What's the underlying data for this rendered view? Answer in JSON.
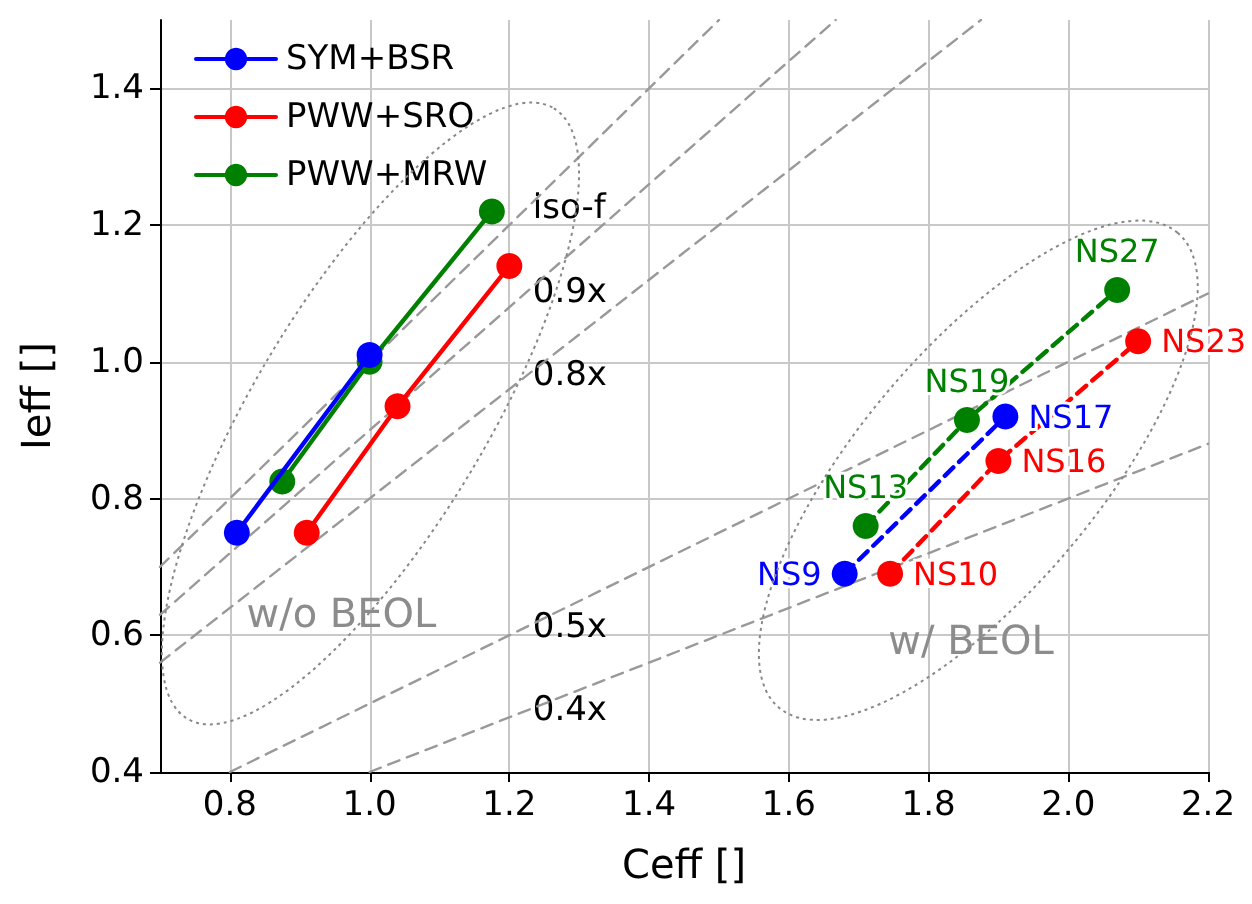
{
  "chart_data": {
    "type": "line",
    "xlabel": "Ceff []",
    "ylabel": "Ieff []",
    "xlim": [
      0.7,
      2.2
    ],
    "xticks": [
      0.8,
      {
        "value": 1.0,
        "label": "1.0"
      },
      1.2,
      1.4,
      1.6,
      1.8,
      {
        "value": 2.0,
        "label": "2.0"
      },
      2.2
    ],
    "ylim": [
      0.4,
      1.5
    ],
    "yticks": [
      0.4,
      0.6,
      0.8,
      {
        "value": 1.0,
        "label": "1.0"
      },
      1.2,
      1.4
    ],
    "grid": true,
    "legend": "top left",
    "marker": "circle",
    "series": [
      {
        "name": "iso-f",
        "color": "#999999",
        "line_style": "dashed",
        "marker": "none",
        "x": [
          0.7,
          1.5
        ],
        "values": [
          0.7,
          1.5
        ]
      },
      {
        "name": "0.9x",
        "color": "#999999",
        "line_style": "dashed",
        "marker": "none",
        "x": [
          0.7,
          1.667
        ],
        "values": [
          0.63,
          1.5
        ]
      },
      {
        "name": "0.8x",
        "color": "#999999",
        "line_style": "dashed",
        "marker": "none",
        "x": [
          0.7,
          1.875
        ],
        "values": [
          0.56,
          1.5
        ]
      },
      {
        "name": "0.5x",
        "color": "#999999",
        "line_style": "dashed",
        "marker": "none",
        "x": [
          0.8,
          2.2
        ],
        "values": [
          0.4,
          1.1
        ]
      },
      {
        "name": "0.4x",
        "color": "#999999",
        "line_style": "dashed",
        "marker": "none",
        "x": [
          1.0,
          2.2
        ],
        "values": [
          0.4,
          0.88
        ]
      },
      {
        "name": "SYM+BSR",
        "color": "#0000ff",
        "line_style": "solid",
        "x": [
          0.81,
          1.0
        ],
        "values": [
          0.75,
          1.01
        ]
      },
      {
        "name": "PWW+SRO",
        "color": "#ff0000",
        "line_style": "solid",
        "x": [
          0.91,
          1.04,
          1.2
        ],
        "values": [
          0.75,
          0.935,
          1.14
        ]
      },
      {
        "name": "PWW+MRW",
        "color": "#008000",
        "line_style": "solid",
        "x": [
          0.875,
          1.0,
          1.175
        ],
        "values": [
          0.825,
          1.0,
          1.22
        ]
      },
      {
        "color": "#0000ff",
        "line_style": "dashed",
        "x": [
          1.68,
          1.91
        ],
        "values": [
          0.69,
          0.92
        ],
        "value_labels": [
          "NS9",
          "NS17"
        ]
      },
      {
        "color": "#ff0000",
        "line_style": "dashed",
        "x": [
          1.745,
          1.9,
          2.1
        ],
        "values": [
          0.69,
          0.855,
          1.03
        ],
        "value_labels": [
          "NS10",
          "NS16",
          "NS23"
        ]
      },
      {
        "color": "#008000",
        "line_style": "dashed",
        "x": [
          1.71,
          1.855,
          2.07
        ],
        "values": [
          0.76,
          0.915,
          1.105
        ],
        "value_labels": [
          "NS13",
          "NS19",
          "NS27"
        ]
      }
    ],
    "annotations": [
      "w/o BEOL",
      "w/ BEOL"
    ]
  }
}
